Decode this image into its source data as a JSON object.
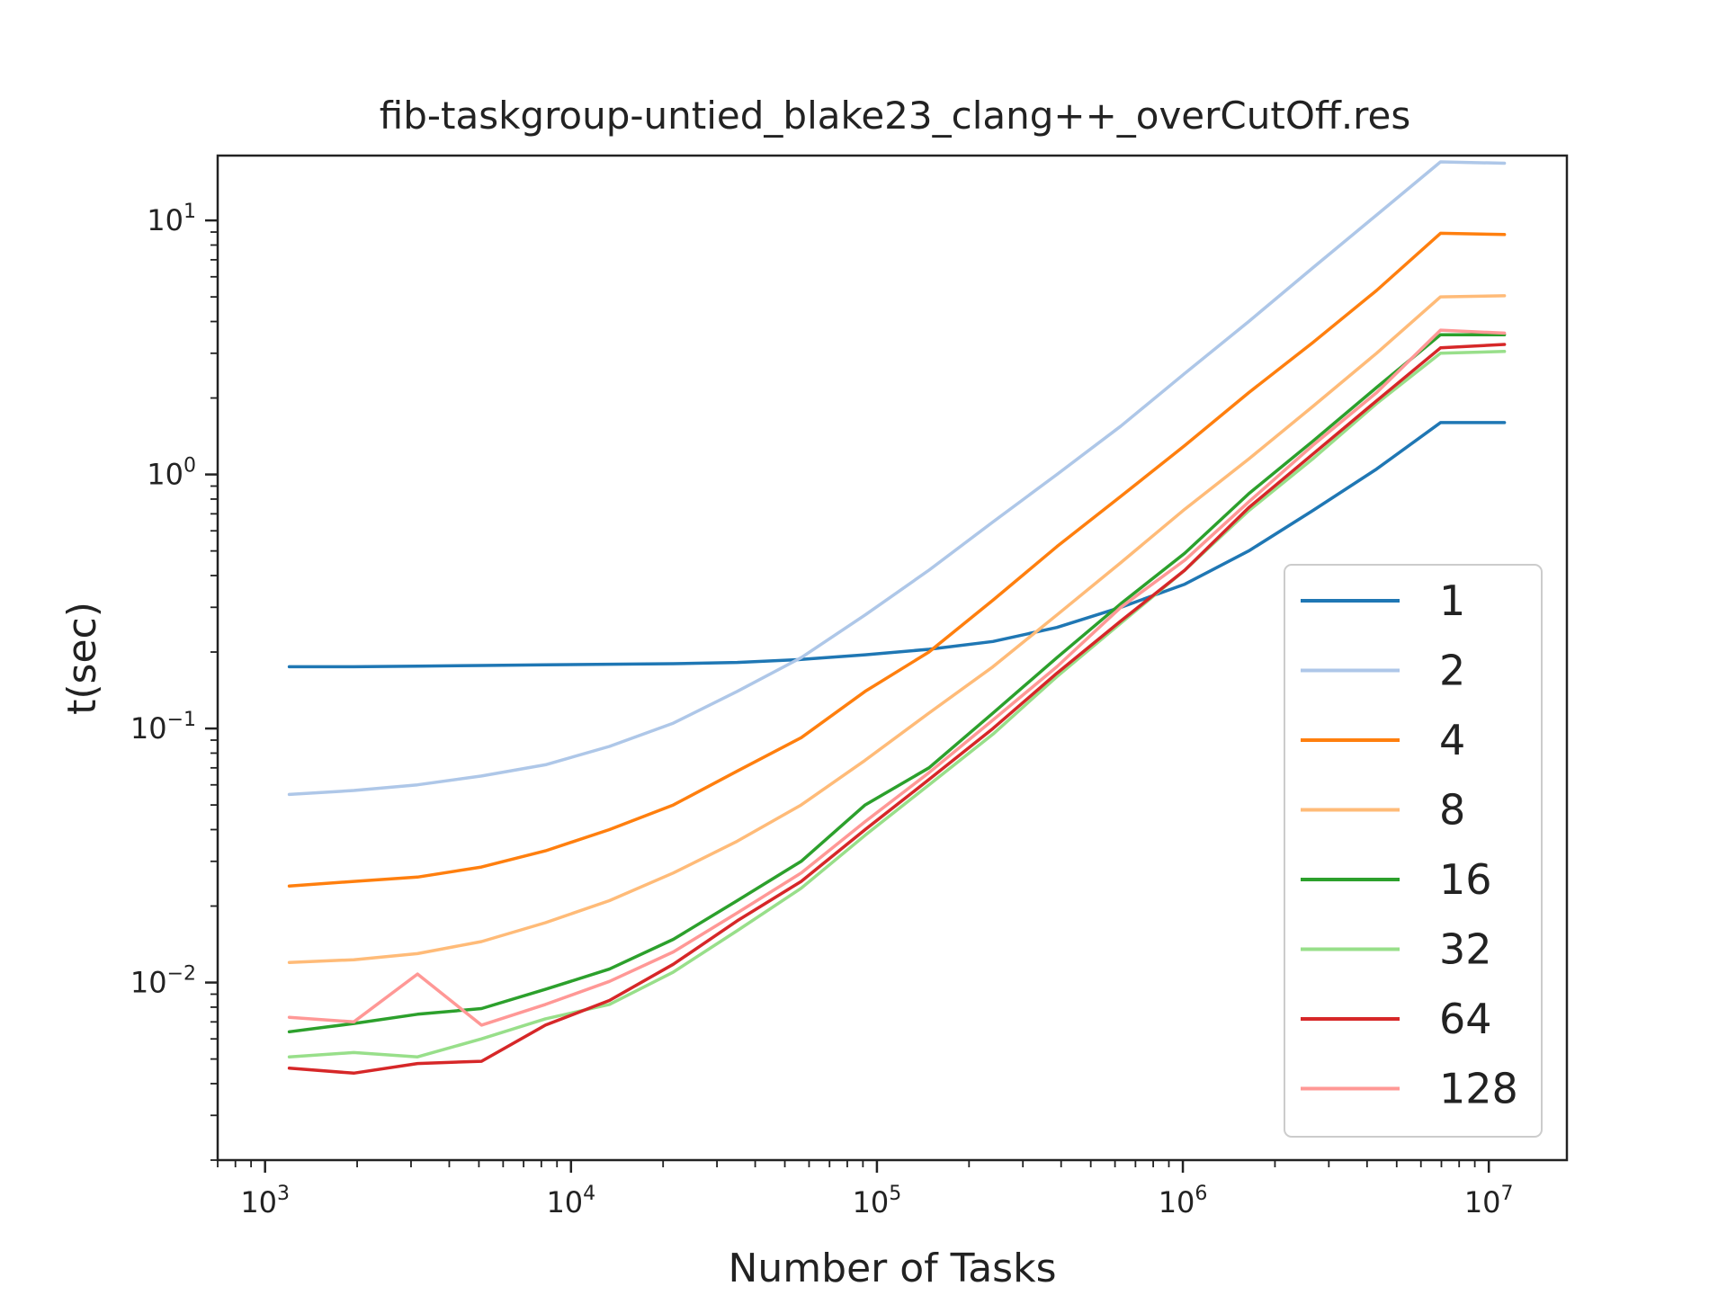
{
  "chart_data": {
    "type": "line",
    "title": "fib-taskgroup-untied_blake23_clang++_overCutOff.res",
    "xlabel": "Number of Tasks",
    "ylabel": "t(sec)",
    "xscale": "log",
    "yscale": "log",
    "xlim": [
      700,
      18000000
    ],
    "ylim": [
      0.002,
      18
    ],
    "grid": false,
    "legend_position": "lower-right",
    "x": [
      1200,
      1950,
      3150,
      5100,
      8250,
      13350,
      21600,
      34950,
      56550,
      91500,
      148000,
      239500,
      387500,
      627000,
      1014500,
      1641500,
      2656000,
      4297500,
      6953500,
      11250000
    ],
    "x_tick_labels": [
      {
        "base": "10",
        "exp": "3",
        "value": 1000
      },
      {
        "base": "10",
        "exp": "4",
        "value": 10000
      },
      {
        "base": "10",
        "exp": "5",
        "value": 100000
      },
      {
        "base": "10",
        "exp": "6",
        "value": 1000000
      },
      {
        "base": "10",
        "exp": "7",
        "value": 10000000
      }
    ],
    "y_tick_labels": [
      {
        "base": "10",
        "exp": "−2",
        "value": 0.01
      },
      {
        "base": "10",
        "exp": "−1",
        "value": 0.1
      },
      {
        "base": "10",
        "exp": "0",
        "value": 1
      },
      {
        "base": "10",
        "exp": "1",
        "value": 10
      }
    ],
    "series": [
      {
        "name": "1",
        "color": "#1f77b4",
        "values": [
          0.175,
          0.175,
          0.176,
          0.177,
          0.178,
          0.179,
          0.18,
          0.182,
          0.187,
          0.195,
          0.205,
          0.22,
          0.25,
          0.3,
          0.37,
          0.5,
          0.72,
          1.05,
          1.6,
          1.6
        ]
      },
      {
        "name": "2",
        "color": "#aec7e8",
        "values": [
          0.055,
          0.057,
          0.06,
          0.065,
          0.072,
          0.085,
          0.105,
          0.14,
          0.19,
          0.28,
          0.42,
          0.65,
          1.0,
          1.55,
          2.5,
          4.0,
          6.5,
          10.5,
          17.0,
          16.8
        ]
      },
      {
        "name": "4",
        "color": "#ff7f0e",
        "values": [
          0.024,
          0.025,
          0.026,
          0.0285,
          0.033,
          0.04,
          0.05,
          0.068,
          0.092,
          0.14,
          0.2,
          0.32,
          0.52,
          0.82,
          1.3,
          2.1,
          3.3,
          5.3,
          8.9,
          8.8
        ]
      },
      {
        "name": "8",
        "color": "#ffbb78",
        "values": [
          0.012,
          0.0123,
          0.013,
          0.0145,
          0.0172,
          0.021,
          0.027,
          0.036,
          0.05,
          0.075,
          0.115,
          0.175,
          0.28,
          0.45,
          0.73,
          1.15,
          1.85,
          3.0,
          5.0,
          5.05
        ]
      },
      {
        "name": "16",
        "color": "#2ca02c",
        "values": [
          0.0064,
          0.0069,
          0.0075,
          0.0079,
          0.0094,
          0.0113,
          0.0148,
          0.021,
          0.03,
          0.05,
          0.07,
          0.115,
          0.19,
          0.31,
          0.49,
          0.84,
          1.35,
          2.2,
          3.55,
          3.55
        ]
      },
      {
        "name": "32",
        "color": "#98df8a",
        "values": [
          0.0051,
          0.0053,
          0.0051,
          0.006,
          0.0072,
          0.0082,
          0.011,
          0.016,
          0.0235,
          0.038,
          0.06,
          0.095,
          0.16,
          0.26,
          0.42,
          0.72,
          1.15,
          1.9,
          3.0,
          3.05
        ]
      },
      {
        "name": "64",
        "color": "#d62728",
        "values": [
          0.0046,
          0.0044,
          0.0048,
          0.0049,
          0.0068,
          0.0085,
          0.0118,
          0.0175,
          0.025,
          0.04,
          0.063,
          0.1,
          0.165,
          0.265,
          0.42,
          0.74,
          1.2,
          1.95,
          3.15,
          3.25
        ]
      },
      {
        "name": "128",
        "color": "#ff9896",
        "values": [
          0.0073,
          0.007,
          0.0108,
          0.0068,
          0.0082,
          0.0101,
          0.0132,
          0.0188,
          0.027,
          0.043,
          0.067,
          0.108,
          0.175,
          0.3,
          0.46,
          0.78,
          1.3,
          2.1,
          3.7,
          3.6
        ]
      }
    ]
  }
}
